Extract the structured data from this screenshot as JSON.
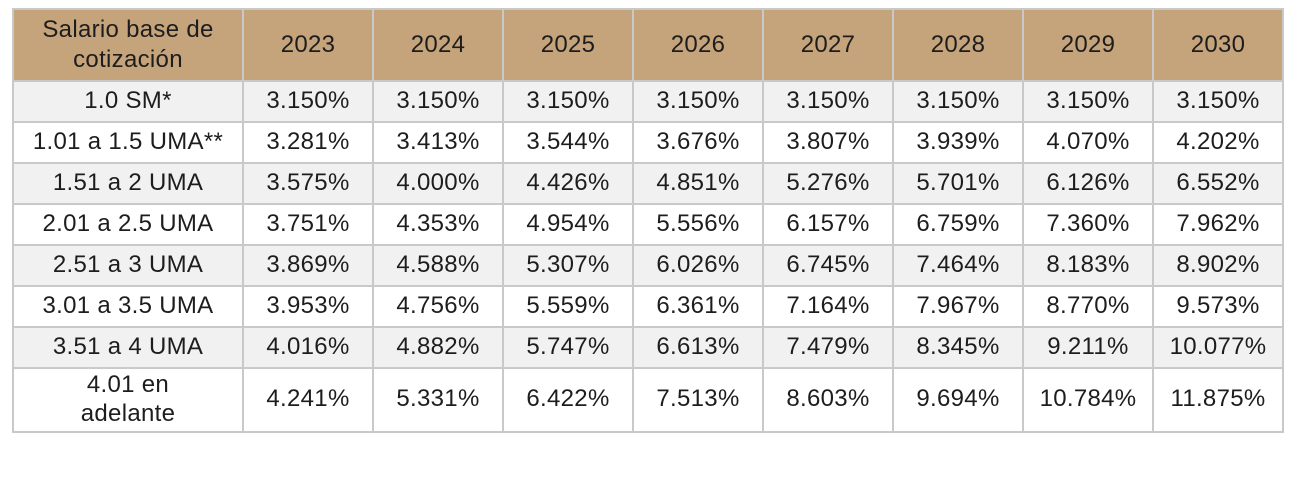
{
  "chart_data": {
    "type": "table",
    "row_header_label": "Salario base de cotización",
    "categories": [
      "2023",
      "2024",
      "2025",
      "2026",
      "2027",
      "2028",
      "2029",
      "2030"
    ],
    "rows": [
      {
        "label": "1.0 SM*",
        "values": [
          "3.150%",
          "3.150%",
          "3.150%",
          "3.150%",
          "3.150%",
          "3.150%",
          "3.150%",
          "3.150%"
        ]
      },
      {
        "label": "1.01 a 1.5 UMA**",
        "values": [
          "3.281%",
          "3.413%",
          "3.544%",
          "3.676%",
          "3.807%",
          "3.939%",
          "4.070%",
          "4.202%"
        ]
      },
      {
        "label": "1.51 a 2 UMA",
        "values": [
          "3.575%",
          "4.000%",
          "4.426%",
          "4.851%",
          "5.276%",
          "5.701%",
          "6.126%",
          "6.552%"
        ]
      },
      {
        "label": "2.01 a 2.5 UMA",
        "values": [
          "3.751%",
          "4.353%",
          "4.954%",
          "5.556%",
          "6.157%",
          "6.759%",
          "7.360%",
          "7.962%"
        ]
      },
      {
        "label": "2.51 a 3 UMA",
        "values": [
          "3.869%",
          "4.588%",
          "5.307%",
          "6.026%",
          "6.745%",
          "7.464%",
          "8.183%",
          "8.902%"
        ]
      },
      {
        "label": "3.01 a 3.5 UMA",
        "values": [
          "3.953%",
          "4.756%",
          "5.559%",
          "6.361%",
          "7.164%",
          "7.967%",
          "8.770%",
          "9.573%"
        ]
      },
      {
        "label": "3.51 a 4 UMA",
        "values": [
          "4.016%",
          "4.882%",
          "5.747%",
          "6.613%",
          "7.479%",
          "8.345%",
          "9.211%",
          "10.077%"
        ]
      },
      {
        "label": "4.01 en\nadelante",
        "values": [
          "4.241%",
          "5.331%",
          "6.422%",
          "7.513%",
          "8.603%",
          "9.694%",
          "10.784%",
          "11.875%"
        ]
      }
    ]
  },
  "colors": {
    "header_bg": "#C5A47B",
    "row_alt_bg": "#F1F1F1",
    "row_bg": "#FFFFFF",
    "text": "#1D1D1D",
    "border_inner": "#C9C9C9",
    "border_outer": "#A5A5A5"
  }
}
